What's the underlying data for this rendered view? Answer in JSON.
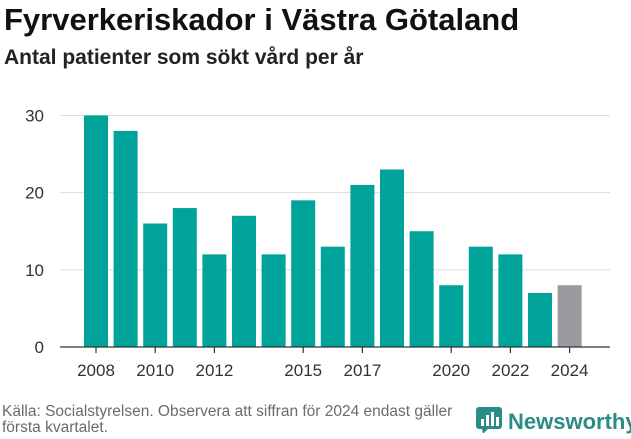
{
  "title": "Fyrverkeriskador i Västra Götaland",
  "subtitle": "Antal patienter som sökt vård per år",
  "source": "Källa: Socialstyrelsen. Observera att siffran för 2024 endast gäller första kvartalet.",
  "brand": {
    "label": "Newsworthy",
    "icon": "newsworthy-logo-icon"
  },
  "colors": {
    "bar": "#00a39a",
    "highlight": "#9a9aa0",
    "grid": "#dddddd",
    "axis": "#333333"
  },
  "chart_data": {
    "type": "bar",
    "categories": [
      "2008",
      "2009",
      "2010",
      "2011",
      "2012",
      "2013",
      "2014",
      "2015",
      "2016",
      "2017",
      "2018",
      "2019",
      "2020",
      "2021",
      "2022",
      "2023",
      "2024"
    ],
    "values": [
      30,
      28,
      16,
      18,
      12,
      17,
      12,
      19,
      13,
      21,
      23,
      15,
      8,
      13,
      12,
      7,
      8
    ],
    "highlight": [
      "2024"
    ],
    "x_tick_labels": [
      "2008",
      "2010",
      "2012",
      "2015",
      "2017",
      "2020",
      "2022",
      "2024"
    ],
    "y_ticks": [
      0,
      10,
      20,
      30
    ],
    "ylim": [
      0,
      32
    ],
    "grid": true,
    "legend": "none",
    "title": "Fyrverkeriskador i Västra Götaland",
    "subtitle": "Antal patienter som sökt vård per år"
  }
}
